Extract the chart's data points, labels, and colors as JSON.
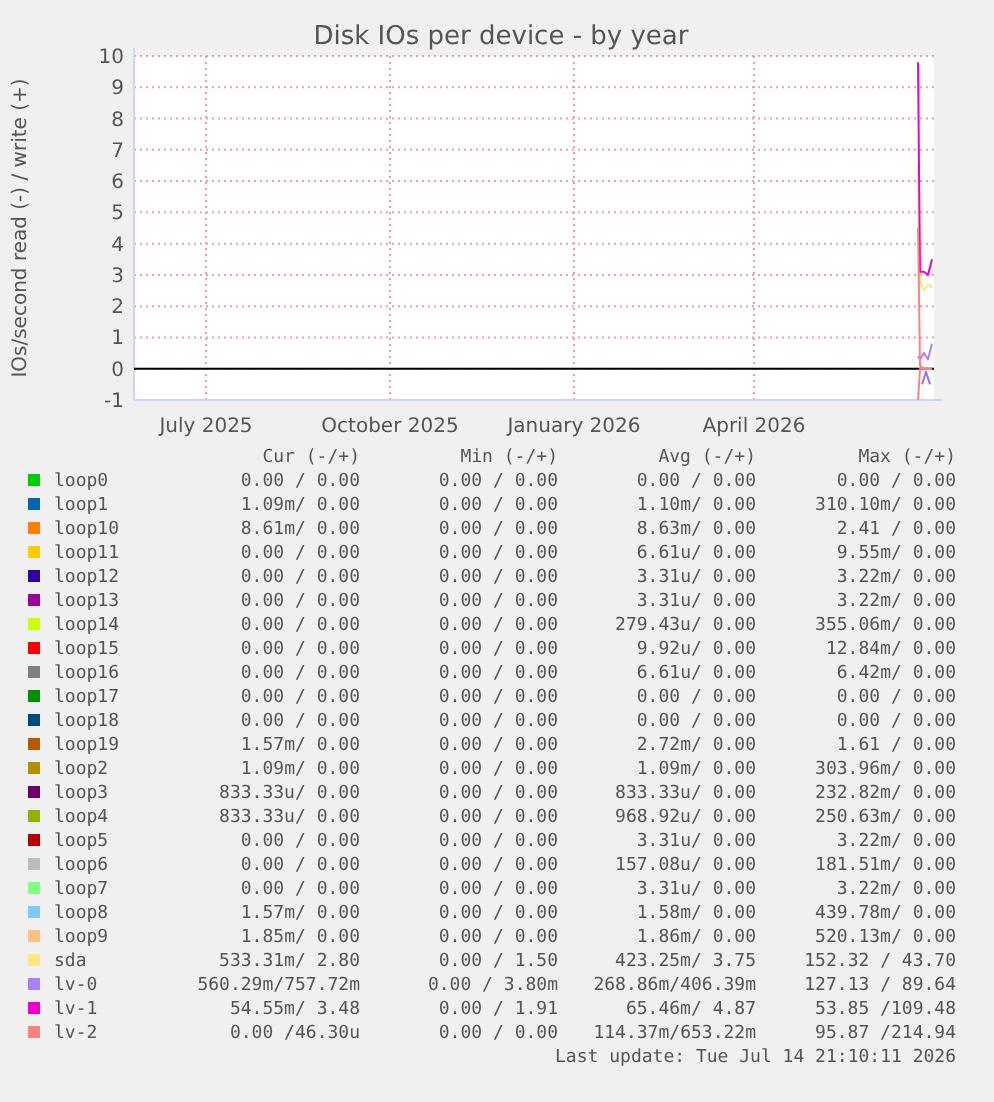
{
  "chart_data": {
    "type": "line",
    "title": "Disk IOs per device - by year",
    "ylabel": "IOs/second read (-) / write (+)",
    "x": [
      "2026-07-06",
      "2026-07-07",
      "2026-07-09",
      "2026-07-11",
      "2026-07-13"
    ],
    "xlim": [
      "2025-06-09",
      "2026-07-14"
    ],
    "xticks": [
      {
        "value": "2025-07-15",
        "label": "July 2025"
      },
      {
        "value": "2025-10-15",
        "label": "October 2025"
      },
      {
        "value": "2026-01-15",
        "label": "January 2026"
      },
      {
        "value": "2026-04-15",
        "label": "April 2026"
      }
    ],
    "ylim": [
      -1,
      10
    ],
    "yticks": [
      -1,
      0,
      1,
      2,
      3,
      4,
      5,
      6,
      7,
      8,
      9,
      10
    ],
    "grid": true,
    "legend": "bottom",
    "series": [
      {
        "name": "loop0",
        "color": "#00cc00",
        "values": [
          null,
          null,
          null,
          null,
          null
        ]
      },
      {
        "name": "loop1",
        "color": "#0066b3",
        "values": [
          null,
          null,
          null,
          null,
          null
        ]
      },
      {
        "name": "loop10",
        "color": "#ff8000",
        "values": [
          null,
          null,
          null,
          null,
          null
        ]
      },
      {
        "name": "loop11",
        "color": "#ffcc00",
        "values": [
          null,
          null,
          null,
          null,
          null
        ]
      },
      {
        "name": "loop12",
        "color": "#330099",
        "values": [
          null,
          null,
          null,
          null,
          null
        ]
      },
      {
        "name": "loop13",
        "color": "#990099",
        "values": [
          null,
          null,
          null,
          null,
          null
        ]
      },
      {
        "name": "loop14",
        "color": "#ccff00",
        "values": [
          null,
          null,
          null,
          null,
          null
        ]
      },
      {
        "name": "loop15",
        "color": "#ff0000",
        "values": [
          null,
          null,
          null,
          null,
          null
        ]
      },
      {
        "name": "loop16",
        "color": "#808080",
        "values": [
          null,
          null,
          null,
          null,
          null
        ]
      },
      {
        "name": "loop17",
        "color": "#008f00",
        "values": [
          null,
          null,
          null,
          null,
          null
        ]
      },
      {
        "name": "loop18",
        "color": "#00487d",
        "values": [
          null,
          null,
          null,
          null,
          null
        ]
      },
      {
        "name": "loop19",
        "color": "#b35a00",
        "values": [
          null,
          null,
          null,
          null,
          null
        ]
      },
      {
        "name": "loop2",
        "color": "#b38f00",
        "values": [
          null,
          null,
          null,
          null,
          null
        ]
      },
      {
        "name": "loop3",
        "color": "#6b006b",
        "values": [
          null,
          null,
          null,
          null,
          null
        ]
      },
      {
        "name": "loop4",
        "color": "#8fb300",
        "values": [
          null,
          null,
          null,
          null,
          null
        ]
      },
      {
        "name": "loop5",
        "color": "#b30000",
        "values": [
          null,
          null,
          null,
          null,
          null
        ]
      },
      {
        "name": "loop6",
        "color": "#bebebe",
        "values": [
          null,
          null,
          null,
          null,
          null
        ]
      },
      {
        "name": "loop7",
        "color": "#80ff80",
        "values": [
          null,
          null,
          null,
          null,
          null
        ]
      },
      {
        "name": "loop8",
        "color": "#80c9ff",
        "values": [
          null,
          null,
          null,
          null,
          null
        ]
      },
      {
        "name": "loop9",
        "color": "#ffc080",
        "values": [
          null,
          null,
          null,
          null,
          null
        ]
      },
      {
        "name": "sda",
        "color": "#ffe680",
        "values": [
          6.5,
          2.8,
          2.5,
          2.7,
          2.6
        ]
      },
      {
        "name": "lv-0",
        "color": "#aa80ff",
        "values": [
          0.4,
          0.3,
          0.5,
          0.3,
          0.8
        ]
      },
      {
        "name": "lv-1",
        "color": "#ee00cc",
        "values": [
          9.8,
          3.1,
          3.1,
          3.0,
          3.5
        ]
      },
      {
        "name": "lv-2",
        "color": "#ff8080",
        "values": [
          4.5,
          0.1,
          0,
          0,
          0
        ]
      },
      {
        "color": "#9a70f0",
        "x": [
          "2026-07-08",
          "2026-07-10",
          "2026-07-12"
        ],
        "values": [
          -0.5,
          -0.1,
          -0.5
        ]
      },
      {
        "color": "#ff8080",
        "values": [
          -1.0,
          0,
          0,
          0,
          0
        ]
      }
    ],
    "annotations": [
      "Cur (-/+)",
      "Min (-/+)",
      "Avg (-/+)",
      "Max (-/+)",
      "0.00 / 0.00",
      "0.00 / 0.00",
      "0.00 / 0.00",
      "0.00 / 0.00",
      "1.09m/ 0.00",
      "0.00 / 0.00",
      "1.10m/ 0.00",
      "310.10m/ 0.00",
      "8.61m/ 0.00",
      "0.00 / 0.00",
      "8.63m/ 0.00",
      "2.41 / 0.00",
      "0.00 / 0.00",
      "0.00 / 0.00",
      "6.61u/ 0.00",
      "9.55m/ 0.00",
      "0.00 / 0.00",
      "0.00 / 0.00",
      "3.31u/ 0.00",
      "3.22m/ 0.00",
      "0.00 / 0.00",
      "0.00 / 0.00",
      "3.31u/ 0.00",
      "3.22m/ 0.00",
      "0.00 / 0.00",
      "0.00 / 0.00",
      "279.43u/ 0.00",
      "355.06m/ 0.00",
      "0.00 / 0.00",
      "0.00 / 0.00",
      "9.92u/ 0.00",
      "12.84m/ 0.00",
      "0.00 / 0.00",
      "0.00 / 0.00",
      "6.61u/ 0.00",
      "6.42m/ 0.00",
      "0.00 / 0.00",
      "0.00 / 0.00",
      "0.00 / 0.00",
      "0.00 / 0.00",
      "0.00 / 0.00",
      "0.00 / 0.00",
      "0.00 / 0.00",
      "0.00 / 0.00",
      "1.57m/ 0.00",
      "0.00 / 0.00",
      "2.72m/ 0.00",
      "1.61 / 0.00",
      "1.09m/ 0.00",
      "0.00 / 0.00",
      "1.09m/ 0.00",
      "303.96m/ 0.00",
      "833.33u/ 0.00",
      "0.00 / 0.00",
      "833.33u/ 0.00",
      "232.82m/ 0.00",
      "833.33u/ 0.00",
      "0.00 / 0.00",
      "968.92u/ 0.00",
      "250.63m/ 0.00",
      "0.00 / 0.00",
      "0.00 / 0.00",
      "3.31u/ 0.00",
      "3.22m/ 0.00",
      "0.00 / 0.00",
      "0.00 / 0.00",
      "157.08u/ 0.00",
      "181.51m/ 0.00",
      "0.00 / 0.00",
      "0.00 / 0.00",
      "3.31u/ 0.00",
      "3.22m/ 0.00",
      "1.57m/ 0.00",
      "0.00 / 0.00",
      "1.58m/ 0.00",
      "439.78m/ 0.00",
      "1.85m/ 0.00",
      "0.00 / 0.00",
      "1.86m/ 0.00",
      "520.13m/ 0.00",
      "533.31m/ 2.80",
      "0.00 / 1.50",
      "423.25m/ 3.75",
      "152.32 / 43.70",
      "560.29m/757.72m",
      "0.00 / 3.80m",
      "268.86m/406.39m",
      "127.13 / 89.64",
      "54.55m/ 3.48",
      "0.00 / 1.91",
      "65.46m/ 4.87",
      "53.85 /109.48",
      "0.00 /46.30u",
      "0.00 / 0.00",
      "114.37m/653.22m",
      "95.87 /214.94",
      "Last update: Tue Jul 14 21:10:11 2026"
    ]
  }
}
